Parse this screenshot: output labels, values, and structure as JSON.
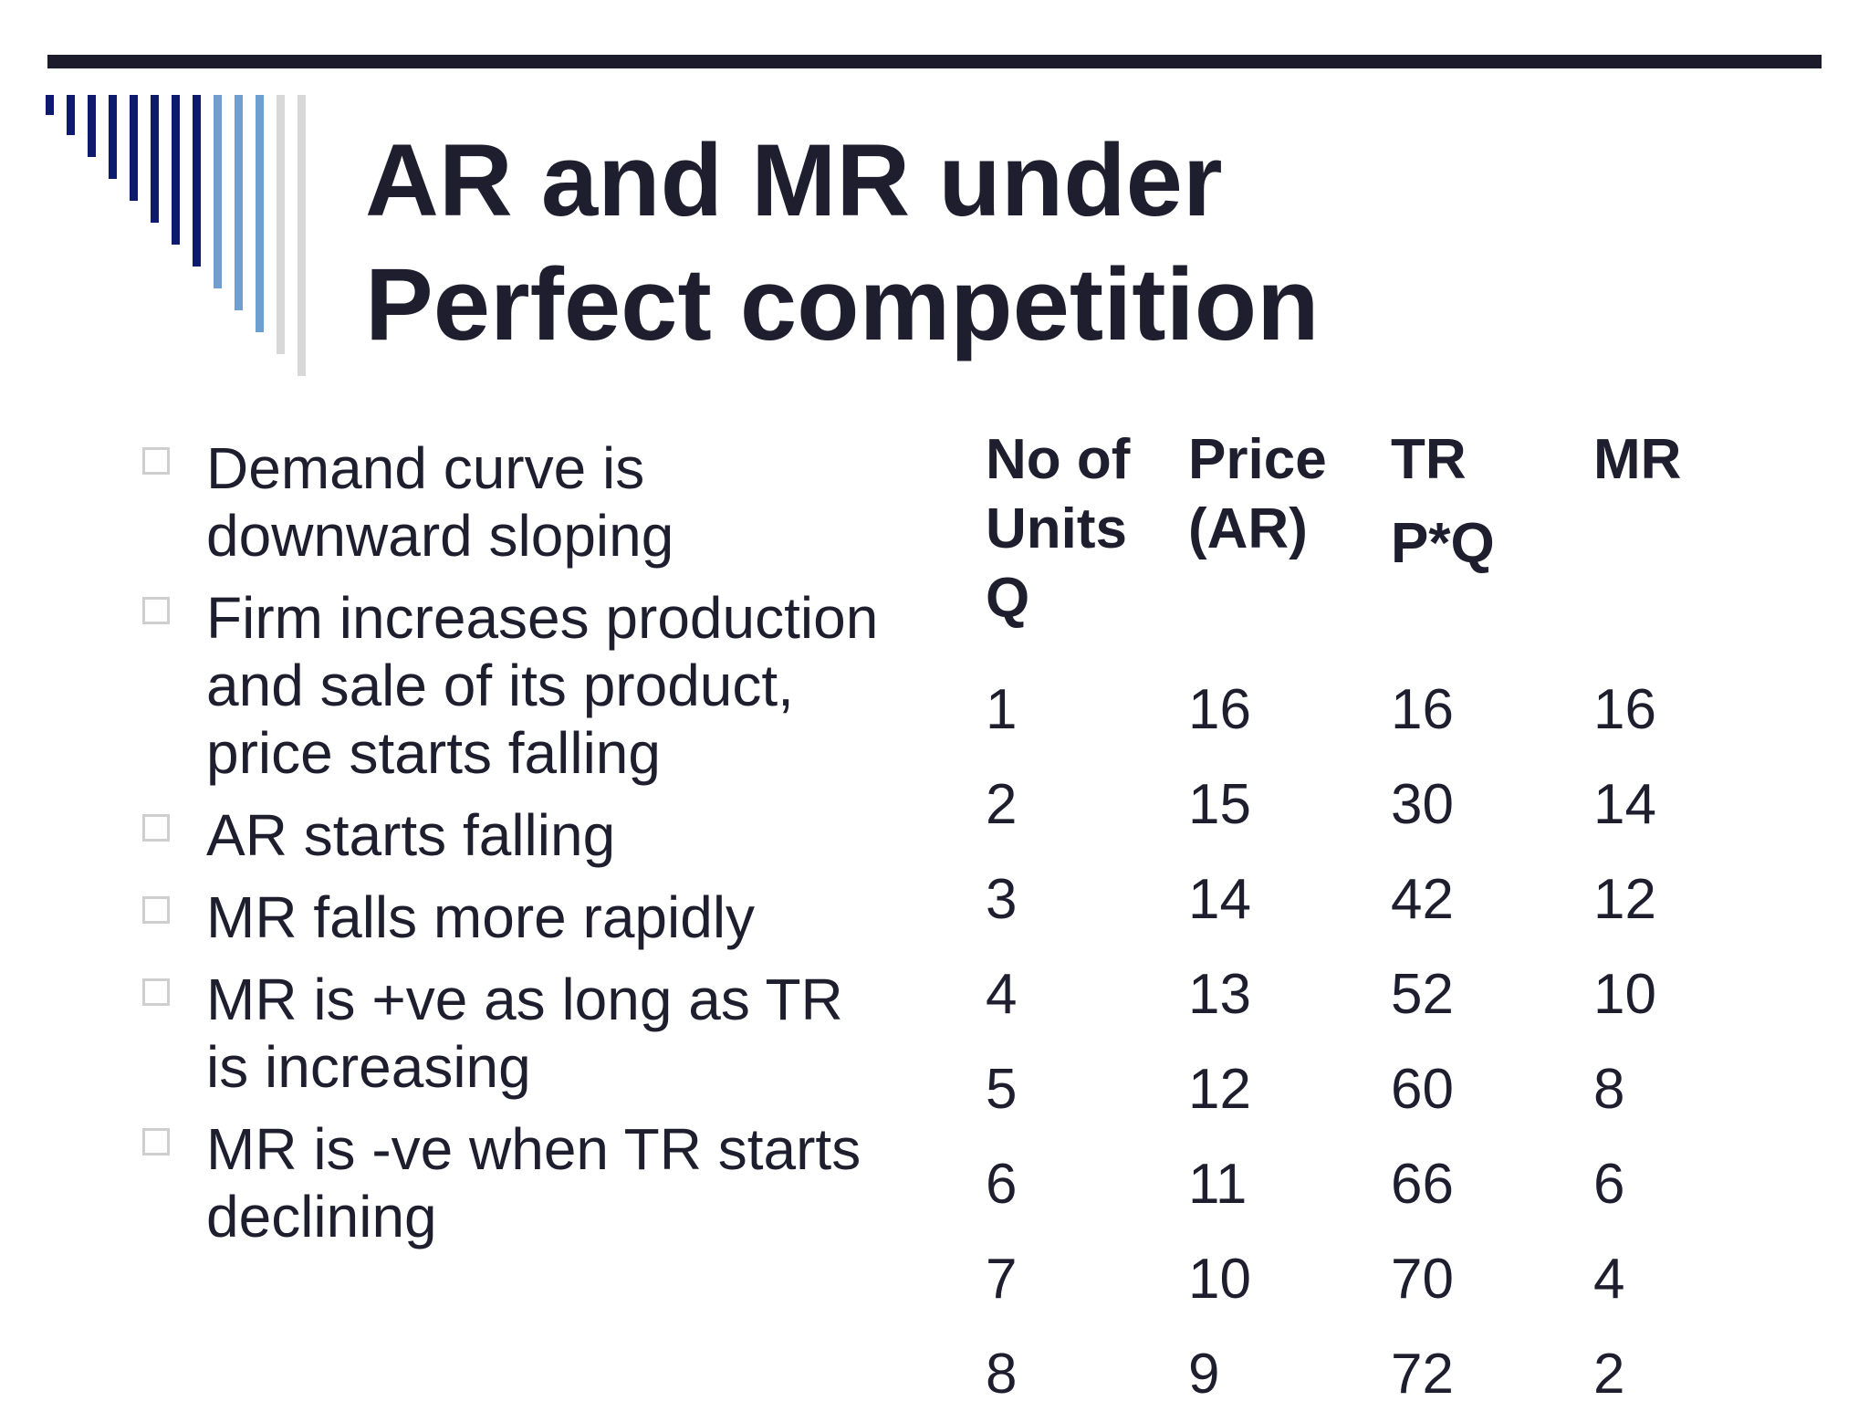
{
  "slide": {
    "title_line1": "AR and MR under",
    "title_line2": "Perfect competition",
    "colors": {
      "rule": "#1b1b2b",
      "deco_dark": "#0d1a6e",
      "deco_mid": "#6f9fd0",
      "deco_light": "#d8d8d8",
      "text": "#1e1e2e"
    }
  },
  "bullets": [
    {
      "text": "Demand curve is downward sloping"
    },
    {
      "text": "Firm increases production and sale of its product, price starts falling"
    },
    {
      "text": "AR starts falling"
    },
    {
      "text": "MR falls more rapidly"
    },
    {
      "text": "MR is +ve  as long as TR is increasing"
    },
    {
      "text": "MR is  -ve when TR starts declining"
    }
  ],
  "table": {
    "headers": {
      "units_line1": "No of",
      "units_line2": "Units",
      "units_line3": "Q",
      "price_line1": "Price",
      "price_line2": "(AR)",
      "tr_line1": "TR",
      "tr_line2": "P*Q",
      "mr": "MR"
    },
    "rows": [
      [
        "1",
        "16",
        "16",
        "16"
      ],
      [
        "2",
        "15",
        "30",
        "14"
      ],
      [
        "3",
        "14",
        "42",
        "12"
      ],
      [
        "4",
        "13",
        "52",
        "10"
      ],
      [
        "5",
        "12",
        "60",
        "8"
      ],
      [
        "6",
        "11",
        "66",
        "6"
      ],
      [
        "7",
        "10",
        "70",
        "4"
      ],
      [
        "8",
        "9",
        "72",
        "2"
      ]
    ]
  }
}
